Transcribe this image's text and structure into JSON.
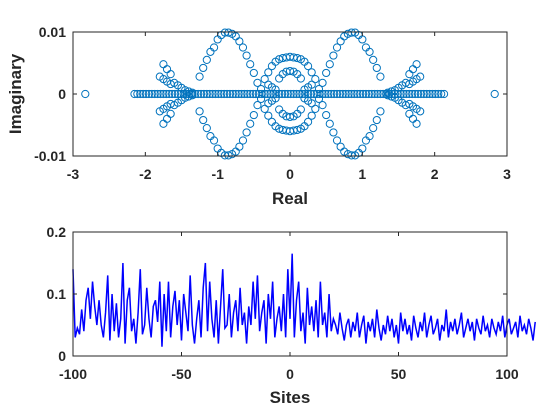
{
  "colors": {
    "scatter_marker": "#0072BD",
    "line": "#0000FF",
    "axes": "#262626",
    "background": "#FFFFFF"
  },
  "chart_data": [
    {
      "type": "scatter",
      "title": "",
      "xlabel": "Real",
      "ylabel": "Imaginary",
      "xlim": [
        -3,
        3
      ],
      "ylim": [
        -0.01,
        0.01
      ],
      "xticks": [
        -3,
        -2,
        -1,
        0,
        1,
        2,
        3
      ],
      "xtick_labels": [
        "-3",
        "-2",
        "-1",
        "0",
        "1",
        "2",
        "3"
      ],
      "yticks": [
        -0.01,
        0,
        0.01
      ],
      "ytick_labels": [
        "-0.01",
        "0",
        "0.01"
      ],
      "grid": false,
      "marker": "open-circle",
      "x": [
        -2.83,
        2.83,
        -2.15,
        -2.11,
        -2.07,
        -2.03,
        -1.99,
        -1.95,
        -1.91,
        -1.87,
        -1.83,
        -1.79,
        -1.75,
        -1.71,
        -1.67,
        -1.63,
        -1.59,
        -1.55,
        -1.51,
        -1.47,
        -1.43,
        -1.39,
        -1.35,
        -1.31,
        -1.27,
        -1.23,
        -1.19,
        -1.15,
        -1.11,
        -1.07,
        -1.03,
        -0.99,
        -0.95,
        -0.91,
        -0.87,
        -0.83,
        -0.79,
        -0.75,
        -0.71,
        -0.67,
        -0.63,
        -0.59,
        -0.55,
        -0.51,
        -0.47,
        -0.43,
        -0.39,
        -0.35,
        -0.31,
        -0.27,
        -0.23,
        -0.19,
        -0.15,
        -0.11,
        -0.07,
        -0.03,
        0.01,
        0.05,
        0.09,
        0.13,
        0.17,
        0.21,
        0.25,
        0.29,
        0.33,
        0.37,
        0.41,
        0.45,
        0.49,
        0.53,
        0.57,
        0.61,
        0.65,
        0.69,
        0.73,
        0.77,
        0.81,
        0.85,
        0.89,
        0.93,
        0.97,
        1.01,
        1.05,
        1.09,
        1.13,
        1.17,
        1.21,
        1.25,
        1.29,
        1.33,
        1.37,
        1.41,
        1.45,
        1.49,
        1.53,
        1.57,
        1.61,
        1.65,
        1.69,
        1.73,
        1.77,
        1.81,
        1.85,
        1.89,
        1.93,
        1.97,
        2.01,
        2.05,
        2.09,
        2.13,
        -0.95,
        -0.9,
        -0.85,
        -0.8,
        -0.75,
        -0.7,
        -0.95,
        -0.9,
        -0.85,
        -0.8,
        -0.75,
        -0.7,
        0.7,
        0.75,
        0.8,
        0.85,
        0.9,
        0.95,
        0.7,
        0.75,
        0.8,
        0.85,
        0.9,
        0.95,
        -1.05,
        -1.0,
        -0.65,
        -0.6,
        -1.05,
        -1.0,
        -0.65,
        -0.6,
        0.6,
        0.65,
        1.0,
        1.05,
        0.6,
        0.65,
        1.0,
        1.05,
        -1.15,
        -1.1,
        -0.55,
        -0.5,
        -1.15,
        -1.1,
        -0.55,
        -0.5,
        0.5,
        0.55,
        1.1,
        1.15,
        0.5,
        0.55,
        1.1,
        1.15,
        -1.25,
        -1.2,
        -1.25,
        -1.2,
        -0.45,
        -0.4,
        -0.45,
        -0.4,
        0.4,
        0.45,
        0.4,
        0.45,
        1.2,
        1.25,
        1.2,
        1.25,
        -1.6,
        -1.55,
        -1.5,
        -1.45,
        -1.4,
        -1.35,
        -1.6,
        -1.55,
        -1.5,
        -1.45,
        -1.4,
        -1.35,
        1.35,
        1.4,
        1.45,
        1.5,
        1.55,
        1.6,
        1.35,
        1.4,
        1.45,
        1.5,
        1.55,
        1.6,
        -1.8,
        -1.75,
        -1.7,
        -1.65,
        -1.8,
        -1.75,
        -1.7,
        -1.65,
        1.65,
        1.7,
        1.75,
        1.8,
        1.65,
        1.7,
        1.75,
        1.8,
        -1.75,
        -1.7,
        -1.65,
        -1.75,
        -1.7,
        -1.65,
        1.65,
        1.7,
        1.75,
        1.65,
        1.7,
        1.75,
        -0.3,
        -0.25,
        -0.2,
        -0.15,
        -0.1,
        -0.05,
        0.0,
        0.05,
        0.1,
        0.15,
        0.2,
        0.25,
        0.3,
        -0.3,
        -0.25,
        -0.2,
        -0.15,
        -0.1,
        -0.05,
        0.0,
        0.05,
        0.1,
        0.15,
        0.2,
        0.25,
        0.3,
        -0.15,
        -0.1,
        -0.05,
        0.0,
        0.05,
        0.1,
        0.15,
        -0.15,
        -0.1,
        -0.05,
        0.0,
        0.05,
        0.1,
        0.15,
        -0.3,
        -0.25,
        -0.2,
        0.2,
        0.25,
        0.3,
        -0.3,
        -0.25,
        -0.2,
        0.2,
        0.25,
        0.3,
        -0.35,
        -0.35,
        0.35,
        0.35
      ],
      "y": [
        0,
        0,
        0,
        0,
        0,
        0,
        0,
        0,
        0,
        0,
        0,
        0,
        0,
        0,
        0,
        0,
        0,
        0,
        0,
        0,
        0,
        0,
        0,
        0,
        0,
        0,
        0,
        0,
        0,
        0,
        0,
        0,
        0,
        0,
        0,
        0,
        0,
        0,
        0,
        0,
        0,
        0,
        0,
        0,
        0,
        0,
        0,
        0,
        0,
        0,
        0,
        0,
        0,
        0,
        0,
        0,
        0,
        0,
        0,
        0,
        0,
        0,
        0,
        0,
        0,
        0,
        0,
        0,
        0,
        0,
        0,
        0,
        0,
        0,
        0,
        0,
        0,
        0,
        0,
        0,
        0,
        0,
        0,
        0,
        0,
        0,
        0,
        0,
        0,
        0,
        0,
        0,
        0,
        0,
        0,
        0,
        0,
        0,
        0,
        0,
        0,
        0,
        0,
        0,
        0,
        0,
        0,
        0,
        0,
        0,
        0.0095,
        0.0099,
        0.0099,
        0.0097,
        0.0093,
        0.0085,
        -0.0095,
        -0.0099,
        -0.0099,
        -0.0097,
        -0.0093,
        -0.0085,
        0.0085,
        0.0093,
        0.0097,
        0.0099,
        0.0099,
        0.0095,
        -0.0085,
        -0.0093,
        -0.0097,
        -0.0099,
        -0.0099,
        -0.0095,
        0.0075,
        0.0088,
        0.0075,
        0.0062,
        -0.0075,
        -0.0088,
        -0.0075,
        -0.0062,
        0.0062,
        0.0075,
        0.0088,
        0.0075,
        -0.0062,
        -0.0075,
        -0.0088,
        -0.0075,
        0.0055,
        0.0068,
        0.0048,
        0.0034,
        -0.0055,
        -0.0068,
        -0.0048,
        -0.0034,
        0.0034,
        0.0048,
        0.0068,
        0.0055,
        -0.0034,
        -0.0048,
        -0.0068,
        -0.0055,
        0.0028,
        0.0042,
        -0.0028,
        -0.0042,
        0.0018,
        0.0008,
        -0.0018,
        -0.0008,
        0.0008,
        0.0018,
        -0.0008,
        -0.0018,
        0.0042,
        0.0028,
        -0.0042,
        -0.0028,
        0.0018,
        0.0014,
        0.001,
        0.0006,
        0.0004,
        0.0002,
        -0.0018,
        -0.0014,
        -0.001,
        -0.0006,
        -0.0004,
        -0.0002,
        0.0002,
        0.0004,
        0.0006,
        0.001,
        0.0014,
        0.0018,
        -0.0002,
        -0.0004,
        -0.0006,
        -0.001,
        -0.0014,
        -0.0018,
        0.0028,
        0.0024,
        0.002,
        0.0016,
        -0.0028,
        -0.0024,
        -0.002,
        -0.0016,
        0.0016,
        0.002,
        0.0024,
        0.0028,
        -0.0016,
        -0.002,
        -0.0024,
        -0.0028,
        0.0048,
        0.004,
        0.0032,
        -0.0048,
        -0.004,
        -0.0032,
        0.0032,
        0.004,
        0.0048,
        -0.0032,
        -0.004,
        -0.0048,
        0.0035,
        0.0045,
        0.0052,
        0.0056,
        0.0058,
        0.0059,
        0.006,
        0.0059,
        0.0058,
        0.0056,
        0.0052,
        0.0045,
        0.0035,
        -0.0035,
        -0.0045,
        -0.0052,
        -0.0056,
        -0.0058,
        -0.0059,
        -0.006,
        -0.0059,
        -0.0058,
        -0.0056,
        -0.0052,
        -0.0045,
        -0.0035,
        0.0025,
        0.0032,
        0.0036,
        0.0037,
        0.0036,
        0.0032,
        0.0025,
        -0.0025,
        -0.0032,
        -0.0036,
        -0.0037,
        -0.0036,
        -0.0032,
        -0.0025,
        0.0015,
        0.0011,
        0.0007,
        0.0007,
        0.0011,
        0.0015,
        -0.0015,
        -0.0011,
        -0.0007,
        -0.0007,
        -0.0011,
        -0.0015,
        0.0024,
        -0.0024,
        0.0024,
        -0.0024
      ]
    },
    {
      "type": "line",
      "title": "",
      "xlabel": "Sites",
      "ylabel": "",
      "xlim": [
        -100,
        100
      ],
      "ylim": [
        0,
        0.2
      ],
      "xticks": [
        -100,
        -50,
        0,
        50,
        100
      ],
      "xtick_labels": [
        "-100",
        "-50",
        "0",
        "50",
        "100"
      ],
      "yticks": [
        0,
        0.1,
        0.2
      ],
      "ytick_labels": [
        "0",
        "0.1",
        "0.2"
      ],
      "grid": false,
      "x_start": -100,
      "x_step": 1,
      "values": [
        0.14,
        0.03,
        0.045,
        0.035,
        0.075,
        0.04,
        0.09,
        0.11,
        0.06,
        0.12,
        0.08,
        0.05,
        0.09,
        0.05,
        0.03,
        0.07,
        0.13,
        0.025,
        0.1,
        0.04,
        0.085,
        0.03,
        0.06,
        0.15,
        0.02,
        0.09,
        0.11,
        0.04,
        0.06,
        0.02,
        0.07,
        0.14,
        0.035,
        0.05,
        0.11,
        0.06,
        0.03,
        0.08,
        0.09,
        0.055,
        0.12,
        0.015,
        0.1,
        0.04,
        0.12,
        0.03,
        0.08,
        0.105,
        0.05,
        0.09,
        0.025,
        0.1,
        0.07,
        0.04,
        0.13,
        0.05,
        0.02,
        0.06,
        0.09,
        0.03,
        0.11,
        0.15,
        0.04,
        0.12,
        0.06,
        0.03,
        0.09,
        0.02,
        0.08,
        0.14,
        0.045,
        0.05,
        0.1,
        0.03,
        0.07,
        0.09,
        0.04,
        0.11,
        0.05,
        0.07,
        0.02,
        0.08,
        0.05,
        0.12,
        0.06,
        0.13,
        0.04,
        0.07,
        0.09,
        0.02,
        0.1,
        0.06,
        0.12,
        0.03,
        0.06,
        0.08,
        0.04,
        0.1,
        0.03,
        0.14,
        0.06,
        0.165,
        0.03,
        0.09,
        0.12,
        0.04,
        0.07,
        0.02,
        0.11,
        0.05,
        0.08,
        0.04,
        0.09,
        0.03,
        0.12,
        0.05,
        0.07,
        0.03,
        0.1,
        0.04,
        0.06,
        0.05,
        0.035,
        0.07,
        0.045,
        0.025,
        0.05,
        0.06,
        0.03,
        0.055,
        0.04,
        0.07,
        0.03,
        0.05,
        0.065,
        0.02,
        0.055,
        0.04,
        0.06,
        0.03,
        0.075,
        0.045,
        0.025,
        0.05,
        0.035,
        0.065,
        0.04,
        0.06,
        0.03,
        0.05,
        0.02,
        0.07,
        0.04,
        0.06,
        0.035,
        0.05,
        0.025,
        0.065,
        0.045,
        0.03,
        0.055,
        0.04,
        0.07,
        0.03,
        0.05,
        0.065,
        0.035,
        0.045,
        0.06,
        0.025,
        0.05,
        0.04,
        0.075,
        0.03,
        0.055,
        0.04,
        0.06,
        0.035,
        0.05,
        0.07,
        0.03,
        0.045,
        0.06,
        0.04,
        0.055,
        0.025,
        0.06,
        0.045,
        0.035,
        0.065,
        0.04,
        0.05,
        0.03,
        0.06,
        0.045,
        0.035,
        0.055,
        0.04,
        0.065,
        0.03,
        0.05,
        0.06,
        0.035,
        0.045,
        0.055,
        0.03,
        0.065,
        0.04,
        0.05,
        0.035,
        0.06,
        0.045,
        0.025,
        0.055
      ]
    }
  ]
}
